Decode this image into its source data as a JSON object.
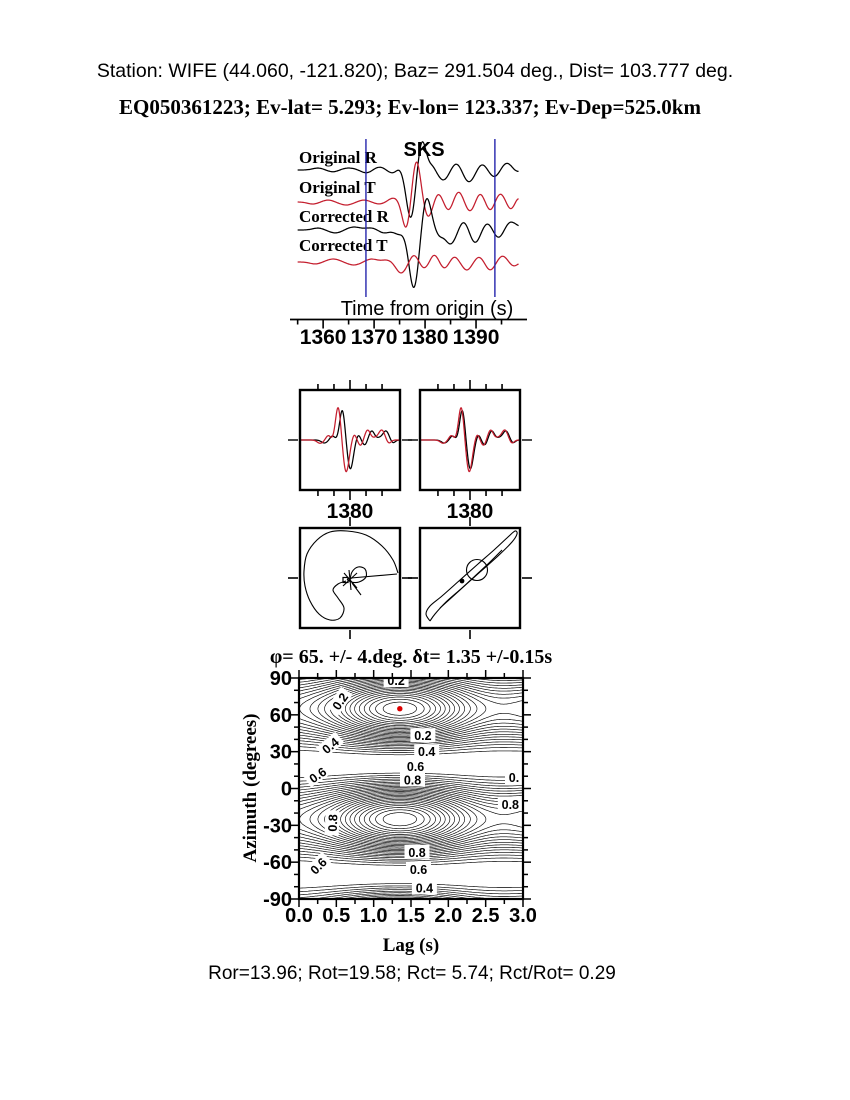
{
  "header": {
    "line1": "Station: WIFE (44.060, -121.820); Baz=  291.504 deg., Dist=  103.777 deg.",
    "line2": "EQ050361223; Ev-lat=   5.293; Ev-lon= 123.337; Ev-Dep=525.0km"
  },
  "footer": {
    "stats": "Ror=13.96; Rot=19.58; Rct= 5.74; Rct/Rot= 0.29"
  },
  "colors": {
    "trace_black": "#000000",
    "trace_red": "#c41e2e",
    "window_blue": "#2525ad",
    "best_dot": "#dd0000"
  },
  "chart_data": [
    {
      "id": "seismograms",
      "type": "line",
      "xlabel": "Time from origin (s)",
      "phase_label": "SKS",
      "phase_time": 1379,
      "xlim": [
        1353.5,
        1400
      ],
      "xticks": [
        1360,
        1370,
        1380,
        1390
      ],
      "minor_tick_s": 5,
      "window_s": [
        1368.4,
        1393.7
      ],
      "traces": [
        {
          "name": "Original R",
          "color": "black",
          "baseline": 170,
          "bumps": [
            [
              1359,
              2,
              1.5
            ],
            [
              1362,
              -2,
              1.5
            ],
            [
              1365,
              2,
              2
            ],
            [
              1368.5,
              -3,
              1.5
            ],
            [
              1371,
              3,
              1.5
            ],
            [
              1373.5,
              -3,
              1.2
            ],
            [
              1375,
              2,
              0.8
            ],
            [
              1377.2,
              -48,
              1.25
            ],
            [
              1379.4,
              30,
              1.15
            ],
            [
              1381.4,
              4,
              0.9
            ],
            [
              1383.6,
              -10,
              1.4
            ],
            [
              1386.2,
              7,
              1.3
            ],
            [
              1388.6,
              -12,
              1.5
            ],
            [
              1391.2,
              6,
              1.3
            ],
            [
              1393.6,
              -7,
              1.4
            ],
            [
              1396,
              7,
              1.4
            ],
            [
              1398,
              -2,
              1
            ]
          ]
        },
        {
          "name": "Original T",
          "color": "red",
          "baseline": 202,
          "bumps": [
            [
              1358,
              -2,
              1.5
            ],
            [
              1361,
              2,
              1.5
            ],
            [
              1364.5,
              -3,
              1.8
            ],
            [
              1368,
              2,
              1.5
            ],
            [
              1371,
              -2,
              1.5
            ],
            [
              1373.8,
              4,
              1.4
            ],
            [
              1376.3,
              -27,
              1.1
            ],
            [
              1378.3,
              41,
              1.15
            ],
            [
              1380.6,
              -15,
              1.1
            ],
            [
              1382.6,
              8,
              1
            ],
            [
              1384.6,
              -8,
              1
            ],
            [
              1386.6,
              10,
              1.1
            ],
            [
              1388.8,
              -9,
              1.1
            ],
            [
              1390.8,
              8,
              1
            ],
            [
              1392.8,
              -8,
              1
            ],
            [
              1394.8,
              8,
              1.1
            ],
            [
              1396.8,
              -7,
              1
            ],
            [
              1398.3,
              4,
              0.8
            ]
          ]
        },
        {
          "name": "Corrected R",
          "color": "black",
          "baseline": 230,
          "bumps": [
            [
              1359,
              2,
              1.5
            ],
            [
              1362.5,
              -3,
              1.8
            ],
            [
              1366,
              3,
              2
            ],
            [
              1369.5,
              2,
              1.5
            ],
            [
              1372,
              -3,
              1.5
            ],
            [
              1374.8,
              -4,
              1.2
            ],
            [
              1377.8,
              -58,
              1.35
            ],
            [
              1380.3,
              33,
              1.25
            ],
            [
              1382.8,
              -5,
              1
            ],
            [
              1385,
              -14,
              1.5
            ],
            [
              1387.6,
              9,
              1.3
            ],
            [
              1389.8,
              -13,
              1.4
            ],
            [
              1392.2,
              7,
              1.3
            ],
            [
              1394.4,
              -8,
              1.3
            ],
            [
              1396.8,
              8,
              1.4
            ],
            [
              1398.5,
              2,
              1
            ]
          ]
        },
        {
          "name": "Corrected T",
          "color": "red",
          "baseline": 262,
          "bumps": [
            [
              1358.5,
              -2,
              1.5
            ],
            [
              1362,
              3,
              1.8
            ],
            [
              1366,
              -3,
              1.8
            ],
            [
              1369.5,
              3,
              1.6
            ],
            [
              1372.5,
              2,
              1.4
            ],
            [
              1375.3,
              -11,
              1.4
            ],
            [
              1377.8,
              7,
              1.1
            ],
            [
              1379.8,
              -6,
              1.1
            ],
            [
              1381.8,
              7,
              1
            ],
            [
              1383.8,
              -6,
              1
            ],
            [
              1385.8,
              5,
              1
            ],
            [
              1388.2,
              -8,
              1.2
            ],
            [
              1390.6,
              5,
              1.1
            ],
            [
              1392.8,
              -8,
              1.2
            ],
            [
              1395.2,
              6,
              1.2
            ],
            [
              1397.4,
              -4,
              1.1
            ]
          ]
        }
      ]
    },
    {
      "id": "window-compare",
      "type": "line",
      "xlim": [
        1364.4,
        1395.6
      ],
      "tick_label": "1380",
      "tick_major": 1380,
      "tick_minor_s": 5,
      "black_bumps": [
        [
          1372,
          -3,
          1.3
        ],
        [
          1374.5,
          4,
          1
        ],
        [
          1377.6,
          30,
          1.15
        ],
        [
          1380.1,
          -29,
          1.3
        ],
        [
          1382.6,
          5,
          0.9
        ],
        [
          1384.6,
          -5,
          1
        ],
        [
          1386.8,
          9,
          1.2
        ],
        [
          1389.2,
          2,
          1.2
        ],
        [
          1391.2,
          9,
          1.3
        ],
        [
          1393.4,
          -3,
          1
        ]
      ],
      "left_red_shift": -1.3,
      "right_red_shift": -0.35,
      "red_scale": 1.1
    },
    {
      "id": "particle-motion",
      "type": "line",
      "left": {
        "outer": [
          [
            0.98,
            0.45
          ],
          [
            0.93,
            0.32
          ],
          [
            0.82,
            0.18
          ],
          [
            0.66,
            0.07
          ],
          [
            0.47,
            0.03
          ],
          [
            0.3,
            0.04
          ],
          [
            0.17,
            0.12
          ],
          [
            0.07,
            0.26
          ],
          [
            0.04,
            0.43
          ],
          [
            0.05,
            0.58
          ],
          [
            0.1,
            0.73
          ],
          [
            0.19,
            0.86
          ],
          [
            0.3,
            0.92
          ],
          [
            0.4,
            0.9
          ],
          [
            0.44,
            0.8
          ],
          [
            0.38,
            0.7
          ],
          [
            0.33,
            0.62
          ],
          [
            0.38,
            0.56
          ],
          [
            0.46,
            0.53
          ]
        ],
        "loop": [
          [
            0.5,
            0.52
          ],
          [
            0.52,
            0.44
          ],
          [
            0.58,
            0.39
          ],
          [
            0.65,
            0.41
          ],
          [
            0.66,
            0.49
          ],
          [
            0.59,
            0.54
          ],
          [
            0.51,
            0.54
          ],
          [
            0.47,
            0.51
          ]
        ],
        "cross": [
          [
            [
              0.44,
              0.45
            ],
            [
              0.57,
              0.6
            ]
          ],
          [
            [
              0.43,
              0.58
            ],
            [
              0.57,
              0.45
            ]
          ],
          [
            [
              0.49,
              0.42
            ],
            [
              0.51,
              0.62
            ]
          ]
        ],
        "hline": [
          [
            0.51,
            0.5
          ],
          [
            0.97,
            0.46
          ]
        ],
        "tail": [
          [
            0.52,
            0.55
          ],
          [
            0.61,
            0.67
          ]
        ],
        "square": [
          0.455,
          0.52
        ]
      },
      "right": {
        "outer": [
          [
            0.1,
            0.93
          ],
          [
            0.06,
            0.86
          ],
          [
            0.1,
            0.78
          ],
          [
            0.22,
            0.68
          ],
          [
            0.4,
            0.52
          ],
          [
            0.58,
            0.36
          ],
          [
            0.74,
            0.22
          ],
          [
            0.88,
            0.09
          ],
          [
            0.95,
            0.03
          ],
          [
            0.97,
            0.06
          ],
          [
            0.92,
            0.14
          ],
          [
            0.78,
            0.28
          ],
          [
            0.6,
            0.44
          ],
          [
            0.42,
            0.6
          ],
          [
            0.26,
            0.74
          ],
          [
            0.15,
            0.86
          ],
          [
            0.1,
            0.93
          ]
        ],
        "inner": [
          [
            0.2,
            0.8
          ],
          [
            0.4,
            0.62
          ],
          [
            0.55,
            0.48
          ],
          [
            0.7,
            0.34
          ],
          [
            0.82,
            0.22
          ]
        ],
        "circle": {
          "c": [
            0.57,
            0.42
          ],
          "r": 0.105
        },
        "dot": [
          0.42,
          0.53
        ]
      }
    },
    {
      "id": "misfit-contour",
      "type": "contour",
      "title": "φ= 65. +/- 4.deg. δt= 1.35 +/-0.15s",
      "xlabel": "Lag (s)",
      "ylabel": "Azimuth (degrees)",
      "xlim": [
        0,
        3
      ],
      "ylim": [
        -90,
        90
      ],
      "xticks": [
        "0.0",
        "0.5",
        "1.0",
        "1.5",
        "2.0",
        "2.5",
        "3.0"
      ],
      "yticks": [
        "90",
        "60",
        "30",
        "0",
        "-30",
        "-60",
        "-90"
      ],
      "x_minor": 0.25,
      "y_minor": 10,
      "best": {
        "lag_s": 1.35,
        "azimuth_deg": 65
      },
      "phi_deg": "65 +/- 4",
      "dt_s": "1.35 +/- 0.15",
      "model": {
        "phi0_deg": 65,
        "terms": [
          [
            0.97,
            1.35,
            1.15
          ],
          [
            0.5,
            3.45,
            0.9
          ],
          [
            0.28,
            -0.45,
            0.8
          ]
        ],
        "levels": {
          "start": 0.06,
          "step": 0.035,
          "count": 26
        }
      },
      "contour_labels": [
        {
          "lag": 1.3,
          "az": 88,
          "t": "0.2",
          "rot": 0
        },
        {
          "lag": 0.55,
          "az": 71,
          "t": "0.2",
          "rot": -55
        },
        {
          "lag": 1.66,
          "az": 43,
          "t": "0.2",
          "rot": 0
        },
        {
          "lag": 0.42,
          "az": 35,
          "t": "0.4",
          "rot": -40
        },
        {
          "lag": 1.71,
          "az": 30,
          "t": "0.4",
          "rot": 0
        },
        {
          "lag": 1.56,
          "az": 18,
          "t": "0.6",
          "rot": 0
        },
        {
          "lag": 0.25,
          "az": 11,
          "t": "0.6",
          "rot": -35
        },
        {
          "lag": 1.52,
          "az": 7,
          "t": "0.8",
          "rot": 0
        },
        {
          "lag": 2.88,
          "az": 9,
          "t": "0.",
          "rot": 0
        },
        {
          "lag": 2.83,
          "az": -13,
          "t": "0.8",
          "rot": 0
        },
        {
          "lag": 0.45,
          "az": -28,
          "t": "0.8",
          "rot": -88
        },
        {
          "lag": 1.58,
          "az": -52,
          "t": "0.8",
          "rot": 0
        },
        {
          "lag": 0.26,
          "az": -63,
          "t": "0.6",
          "rot": -45
        },
        {
          "lag": 1.6,
          "az": -66,
          "t": "0.6",
          "rot": 0
        },
        {
          "lag": 1.68,
          "az": -81,
          "t": "0.4",
          "rot": 0
        }
      ]
    }
  ]
}
